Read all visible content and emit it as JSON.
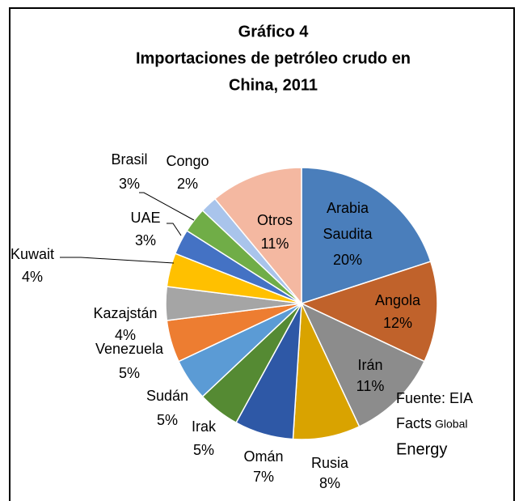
{
  "chart_data": {
    "type": "pie",
    "title": "Gráfico 4",
    "subtitle": [
      "Importaciones de petróleo crudo en",
      "China, 2011"
    ],
    "categories": [
      "Arabia Saudita",
      "Angola",
      "Irán",
      "Rusia",
      "Omán",
      "Irak",
      "Sudán",
      "Venezuela",
      "Kazajstán",
      "Kuwait",
      "UAE",
      "Brasil",
      "Congo",
      "Otros"
    ],
    "values": [
      20,
      12,
      11,
      8,
      7,
      5,
      5,
      5,
      4,
      4,
      3,
      3,
      2,
      11
    ],
    "value_labels": [
      "20%",
      "12%",
      "11%",
      "8%",
      "7%",
      "5%",
      "5%",
      "5%",
      "4%",
      "4%",
      "3%",
      "3%",
      "2%",
      "11%"
    ],
    "colors": [
      "#4a7ebb",
      "#c0622b",
      "#8c8c8c",
      "#d9a300",
      "#2e58a6",
      "#558a33",
      "#5b9bd5",
      "#ed7d31",
      "#a5a5a5",
      "#ffc000",
      "#4472c4",
      "#70ad47",
      "#a9c4eb",
      "#f4b8a1"
    ],
    "annotation": [
      "Fuente: EIA",
      "Facts",
      "Global",
      "Energy"
    ]
  }
}
